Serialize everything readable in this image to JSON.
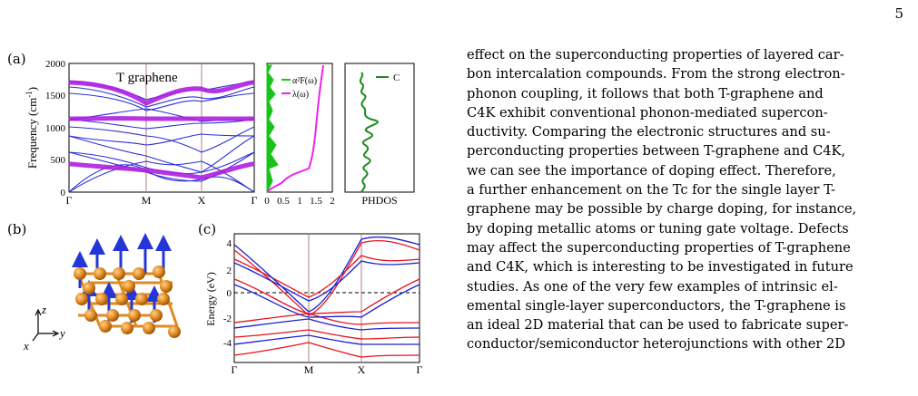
{
  "page": {
    "number": "5"
  },
  "figure": {
    "panel_labels": {
      "a": "(a)",
      "b": "(b)",
      "c": "(c)"
    },
    "a_bands": {
      "title": "T graphene",
      "ylabel": "Frequency (cm",
      "ylabel_sup": "-1",
      "ylabel_close": ")",
      "yticks": [
        "0",
        "500",
        "1000",
        "1500",
        "2000"
      ],
      "xticks": [
        "Γ",
        "M",
        "X",
        "Γ"
      ]
    },
    "a_eliashberg": {
      "legend": [
        "α²F(ω)",
        "λ(ω)"
      ],
      "xticks": [
        "0",
        "0.5",
        "1",
        "1.5",
        "2"
      ],
      "colors": {
        "a2f": "#19c419",
        "lambda": "#ee22ee"
      }
    },
    "a_phdos": {
      "legend": "C",
      "xlabel": "PHDOS",
      "color": "#1e8a1e"
    },
    "b_structure": {
      "axes": {
        "z": "z",
        "y": "y",
        "x": "x"
      },
      "atom_color": "#e08a20",
      "arrow_color": "#2436d8"
    },
    "c_bands": {
      "ylabel": "Energy (eV)",
      "yticks": [
        "4",
        "2",
        "0",
        "-2",
        "-4"
      ],
      "xticks": [
        "Γ",
        "M",
        "X",
        "Γ"
      ],
      "colors": {
        "band1": "#e8141e",
        "band2": "#1a20d0"
      }
    }
  },
  "chart_data": [
    {
      "type": "line",
      "title": "T graphene",
      "ylabel": "Frequency (cm-1)",
      "x": [
        "Γ",
        "M",
        "X",
        "Γ"
      ],
      "ylim": [
        0,
        2000
      ]
    },
    {
      "type": "line",
      "series": [
        {
          "name": "α²F(ω)"
        },
        {
          "name": "λ(ω)"
        }
      ],
      "xlim": [
        0,
        2
      ],
      "ylim": [
        0,
        2000
      ]
    },
    {
      "type": "line",
      "xlabel": "PHDOS",
      "series": [
        {
          "name": "C"
        }
      ]
    },
    {
      "type": "line",
      "ylabel": "Energy (eV)",
      "x": [
        "Γ",
        "M",
        "X",
        "Γ"
      ],
      "ylim": [
        -5,
        5
      ]
    }
  ],
  "paragraph": [
    "effect on the superconducting properties of layered car-",
    "bon intercalation compounds. From the strong electron-",
    "phonon coupling, it follows that both T-graphene and",
    "C4K exhibit conventional phonon-mediated supercon-",
    "ductivity. Comparing the electronic structures and su-",
    "perconducting properties between T-graphene and C4K,",
    "we can see the importance of doping effect. Therefore,",
    "a further enhancement on the Tc for the single layer T-",
    "graphene may be possible by charge doping, for instance,",
    "by doping metallic atoms or tuning gate voltage. Defects",
    "may affect the superconducting properties of T-graphene",
    "and C4K, which is interesting to be investigated in future",
    "studies. As one of the very few examples of intrinsic el-",
    "emental single-layer superconductors, the T-graphene is",
    "an ideal 2D material that can be used to fabricate super-",
    "conductor/semiconductor heterojunctions with other 2D"
  ]
}
